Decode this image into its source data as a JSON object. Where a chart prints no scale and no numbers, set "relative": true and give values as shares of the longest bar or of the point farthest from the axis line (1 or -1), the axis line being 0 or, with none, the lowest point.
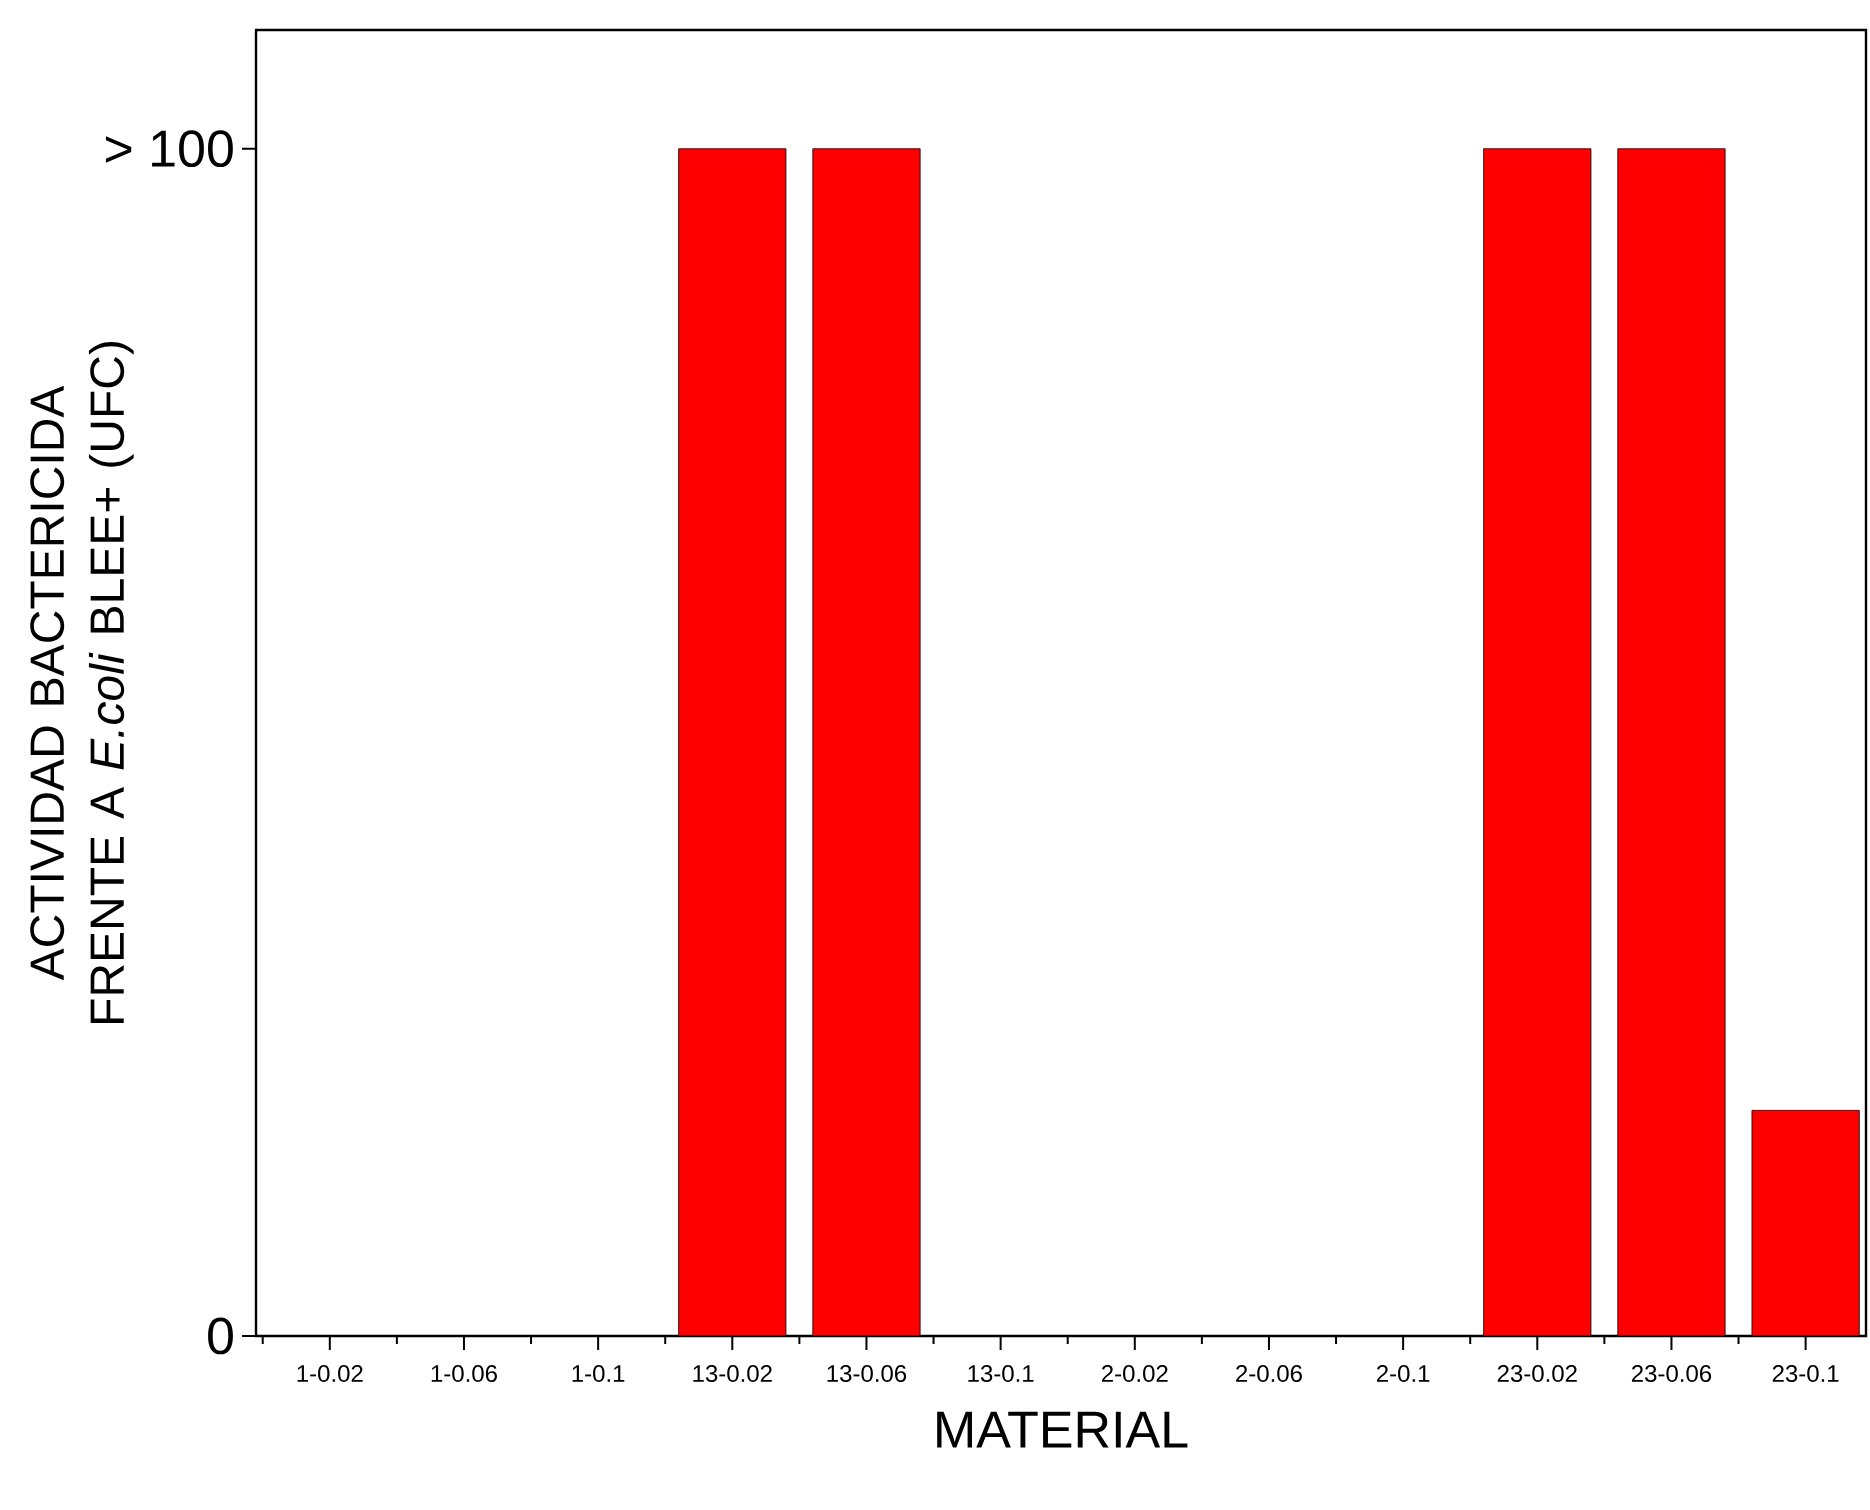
{
  "chart_data": {
    "type": "bar",
    "xlabel": "MATERIAL",
    "ylabel": "ACTIVIDAD BACTERICIDA FRENTE A *E.coli* BLEE+ (UFC)",
    "categories": [
      "1-0.02",
      "1-0.06",
      "1-0.1",
      "13-0.02",
      "13-0.06",
      "13-0.1",
      "2-0.02",
      "2-0.06",
      "2-0.1",
      "23-0.02",
      "23-0.06",
      "23-0.1"
    ],
    "values": [
      0,
      0,
      0,
      1,
      1,
      0,
      0,
      0,
      0,
      1,
      1,
      0.19
    ],
    "relative": true,
    "color": "#ff0000",
    "annotations": [
      "0",
      "> 100"
    ],
    "grid": false
  }
}
